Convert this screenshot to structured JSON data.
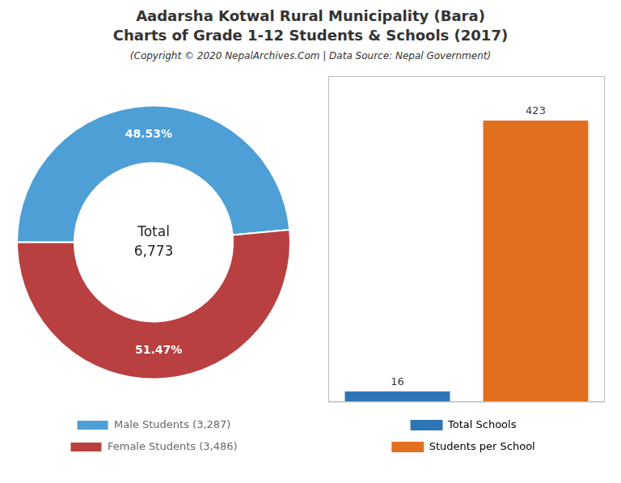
{
  "title": [
    "Aadarsha Kotwal Rural Municipality (Bara)",
    "Charts of Grade 1-12 Students & Schools (2017)"
  ],
  "subtitle": "(Copyright © 2020 NepalArchives.Com | Data Source: Nepal Government)",
  "chart_data": [
    {
      "type": "doughnut",
      "categories": [
        "Male Students (3,287)",
        "Female Students (3,486)"
      ],
      "values": [
        48.53,
        51.47
      ],
      "value_labels": [
        "48.53%",
        "51.47%"
      ],
      "colors": [
        "#4d9fd6",
        "#b94040"
      ],
      "annotations": [
        "Total",
        "6,773"
      ],
      "data_labels": true,
      "legend": "bottom"
    },
    {
      "type": "bar",
      "categories": [
        "Total Schools",
        "Students per School"
      ],
      "values": [
        16,
        423
      ],
      "colors": [
        "#2e75b6",
        "#e07020"
      ],
      "ylim": [
        0,
        490
      ],
      "yticks": [],
      "tick_labels": false,
      "grid": false,
      "data_labels": true,
      "legend": "bottom"
    }
  ]
}
